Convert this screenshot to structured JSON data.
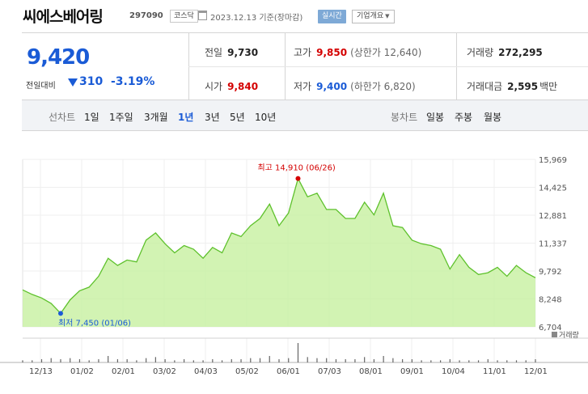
{
  "header": {
    "name": "씨에스베어링",
    "code": "297090",
    "market": "코스닥",
    "date": "2023.12.13 기준(장마감)",
    "realtime_label": "실시간",
    "corp_label": "기업개요"
  },
  "summary": {
    "price": "9,420",
    "change_label": "전일대비",
    "change": "310",
    "change_pct": "-3.19%",
    "prev_label": "전일",
    "prev": "9,730",
    "high_label": "고가",
    "high": "9,850",
    "upper_limit": "(상한가 12,640)",
    "volume_label": "거래량",
    "volume": "272,295",
    "open_label": "시가",
    "open": "9,840",
    "low_label": "저가",
    "low": "9,400",
    "lower_limit": "(하한가 6,820)",
    "amount_label": "거래대금",
    "amount": "2,595",
    "amount_unit": "백만"
  },
  "toolbar": {
    "line_label": "선차트",
    "periods": [
      "1일",
      "1주일",
      "3개월",
      "1년",
      "3년",
      "5년",
      "10년"
    ],
    "active_period": "1년",
    "candle_label": "봉차트",
    "candles": [
      "일봉",
      "주봉",
      "월봉"
    ]
  },
  "colors": {
    "up": "#d40000",
    "down": "#1a5bd6",
    "line": "#5ec12c",
    "fill": "#c7f0a0"
  },
  "chart_data": {
    "type": "area",
    "x_ticks": [
      "12/13",
      "01/02",
      "02/01",
      "03/02",
      "04/03",
      "05/02",
      "06/01",
      "07/03",
      "08/01",
      "09/01",
      "10/04",
      "11/01",
      "12/01"
    ],
    "y_ticks": [
      "15,969",
      "14,425",
      "12,881",
      "11,337",
      "9,792",
      "8,248",
      "6,704"
    ],
    "ylim": [
      6704,
      15969
    ],
    "max_label": "최고 14,910 (06/26)",
    "min_label": "최저 7,450 (01/06)",
    "volume_label": "거래량",
    "x": [
      "12/13",
      "12/20",
      "12/27",
      "01/02",
      "01/06",
      "01/13",
      "01/20",
      "01/27",
      "02/03",
      "02/10",
      "02/17",
      "02/24",
      "03/03",
      "03/10",
      "03/17",
      "03/24",
      "03/31",
      "04/07",
      "04/14",
      "04/21",
      "04/28",
      "05/05",
      "05/12",
      "05/19",
      "05/26",
      "06/02",
      "06/09",
      "06/16",
      "06/23",
      "06/26",
      "06/30",
      "07/07",
      "07/14",
      "07/21",
      "07/28",
      "08/04",
      "08/11",
      "08/18",
      "08/25",
      "09/01",
      "09/08",
      "09/15",
      "09/22",
      "09/29",
      "10/06",
      "10/13",
      "10/20",
      "10/27",
      "11/03",
      "11/10",
      "11/17",
      "11/24",
      "12/01",
      "12/08",
      "12/13"
    ],
    "close": [
      8750,
      8500,
      8300,
      8000,
      7450,
      8200,
      8700,
      8900,
      9500,
      10500,
      10100,
      10400,
      10300,
      11500,
      11900,
      11300,
      10800,
      11200,
      11000,
      10500,
      11100,
      10800,
      11900,
      11700,
      12300,
      12700,
      13500,
      12300,
      13000,
      14910,
      13900,
      14100,
      13200,
      13200,
      12700,
      12700,
      13600,
      12900,
      14100,
      12300,
      12200,
      11500,
      11300,
      11200,
      11000,
      9900,
      10700,
      10000,
      9600,
      9700,
      10000,
      9500,
      10100,
      9700,
      9420
    ],
    "volume": [
      2,
      2,
      3,
      4,
      3,
      4,
      3,
      2,
      3,
      6,
      3,
      3,
      2,
      4,
      5,
      3,
      2,
      3,
      2,
      2,
      3,
      2,
      3,
      3,
      4,
      4,
      6,
      3,
      4,
      18,
      5,
      4,
      4,
      3,
      3,
      3,
      5,
      3,
      6,
      4,
      3,
      3,
      2,
      2,
      2,
      3,
      2,
      2,
      2,
      3,
      2,
      2,
      2,
      2,
      3
    ]
  }
}
